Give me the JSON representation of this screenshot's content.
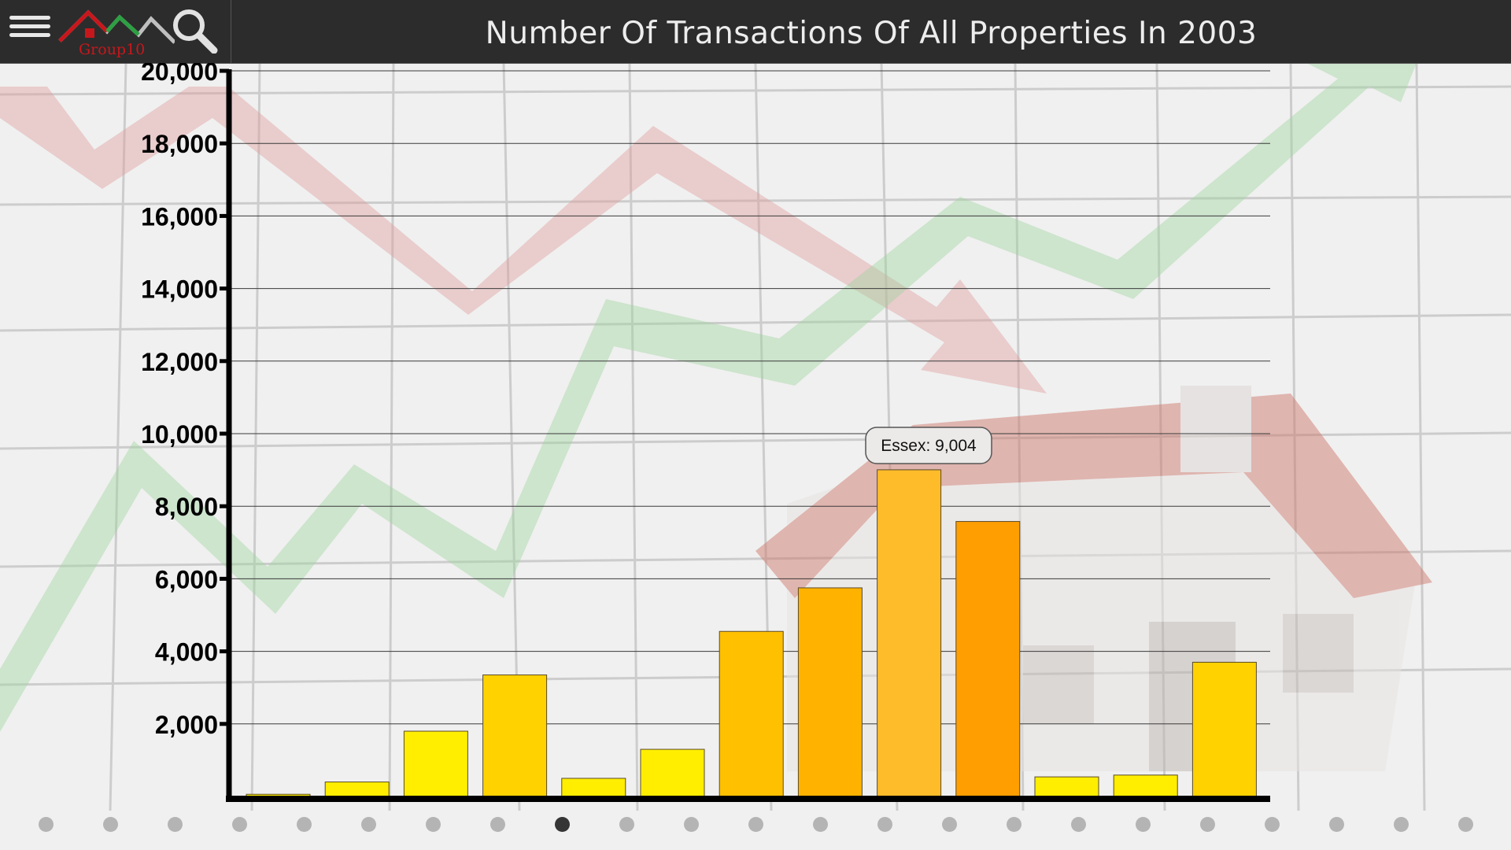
{
  "header": {
    "title": "Number Of Transactions Of All Properties In 2003",
    "logo_text": "Group10"
  },
  "icons": {
    "menu": "menu-icon",
    "logo": "house-logo-icon",
    "search": "search-icon"
  },
  "colors": {
    "header_bg": "#2c2c2c",
    "bar_yellow": "#FFEE00",
    "bar_gold": "#FFD200",
    "bar_amber": "#FFB300",
    "bar_orange": "#FF9E00",
    "dot_inactive": "#b4b4b4",
    "dot_active": "#353535"
  },
  "tooltip": {
    "text": "Essex: 9,004"
  },
  "chart_data": {
    "type": "bar",
    "title": "Number Of Transactions Of All Properties In 2003",
    "xlabel": "",
    "ylabel": "",
    "ylim": [
      0,
      20000
    ],
    "yticks": [
      2000,
      4000,
      6000,
      8000,
      10000,
      12000,
      14000,
      16000,
      18000,
      20000
    ],
    "ytick_labels": [
      "2,000",
      "4,000",
      "6,000",
      "8,000",
      "10,000",
      "12,000",
      "14,000",
      "16,000",
      "18,000",
      "20,000"
    ],
    "grid": true,
    "values": [
      60,
      400,
      1800,
      3350,
      500,
      1300,
      4550,
      5750,
      9004,
      7580,
      540,
      590,
      3700
    ],
    "bar_colors": [
      "#FFEE00",
      "#FFEE00",
      "#FFEE00",
      "#FFD200",
      "#FFEE00",
      "#FFEE00",
      "#FFC000",
      "#FFB300",
      "#FFBC2A",
      "#FF9E00",
      "#FFEE00",
      "#FFEE00",
      "#FFD200"
    ]
  },
  "pagination": {
    "count": 23,
    "active_index": 8
  }
}
